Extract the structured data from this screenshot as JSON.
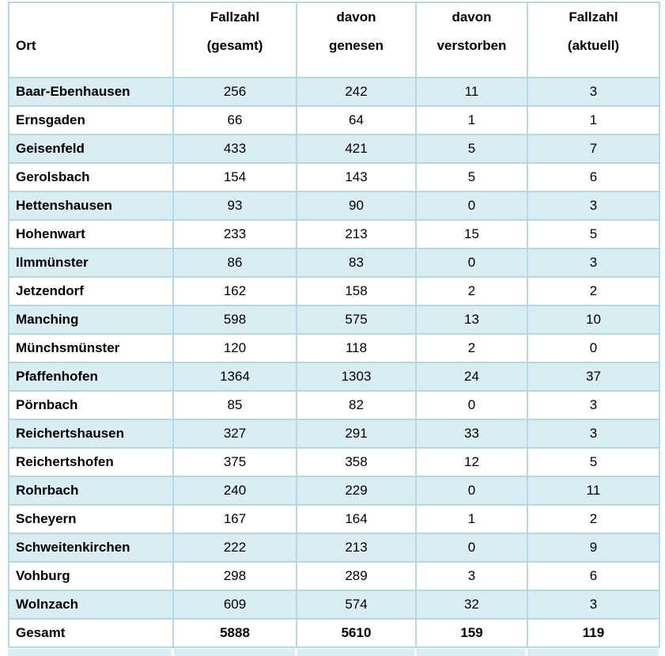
{
  "document": {
    "colors": {
      "row_shade": "#d9edf3",
      "border": "#b5d9e5",
      "header_separator": "#a0c8d7",
      "text": "#000000"
    },
    "table": {
      "header": {
        "ort": "Ort",
        "fallzahl_gesamt": {
          "line1": "Fallzahl",
          "line2": "(gesamt)"
        },
        "davon_genesen": {
          "line1": "davon",
          "line2": "genesen"
        },
        "davon_verstorben": {
          "line1": "davon",
          "line2": "verstorben"
        },
        "fallzahl_aktuell": {
          "line1": "Fallzahl",
          "line2": "(aktuell)"
        }
      },
      "rows": [
        {
          "ort": "Baar-Ebenhausen",
          "fallzahl_gesamt": "256",
          "davon_genesen": "242",
          "davon_verstorben": "11",
          "fallzahl_aktuell": "3"
        },
        {
          "ort": "Ernsgaden",
          "fallzahl_gesamt": "66",
          "davon_genesen": "64",
          "davon_verstorben": "1",
          "fallzahl_aktuell": "1"
        },
        {
          "ort": "Geisenfeld",
          "fallzahl_gesamt": "433",
          "davon_genesen": "421",
          "davon_verstorben": "5",
          "fallzahl_aktuell": "7"
        },
        {
          "ort": "Gerolsbach",
          "fallzahl_gesamt": "154",
          "davon_genesen": "143",
          "davon_verstorben": "5",
          "fallzahl_aktuell": "6"
        },
        {
          "ort": "Hettenshausen",
          "fallzahl_gesamt": "93",
          "davon_genesen": "90",
          "davon_verstorben": "0",
          "fallzahl_aktuell": "3"
        },
        {
          "ort": "Hohenwart",
          "fallzahl_gesamt": "233",
          "davon_genesen": "213",
          "davon_verstorben": "15",
          "fallzahl_aktuell": "5"
        },
        {
          "ort": "Ilmmünster",
          "fallzahl_gesamt": "86",
          "davon_genesen": "83",
          "davon_verstorben": "0",
          "fallzahl_aktuell": "3"
        },
        {
          "ort": "Jetzendorf",
          "fallzahl_gesamt": "162",
          "davon_genesen": "158",
          "davon_verstorben": "2",
          "fallzahl_aktuell": "2"
        },
        {
          "ort": "Manching",
          "fallzahl_gesamt": "598",
          "davon_genesen": "575",
          "davon_verstorben": "13",
          "fallzahl_aktuell": "10"
        },
        {
          "ort": "Münchsmünster",
          "fallzahl_gesamt": "120",
          "davon_genesen": "118",
          "davon_verstorben": "2",
          "fallzahl_aktuell": "0"
        },
        {
          "ort": "Pfaffenhofen",
          "fallzahl_gesamt": "1364",
          "davon_genesen": "1303",
          "davon_verstorben": "24",
          "fallzahl_aktuell": "37"
        },
        {
          "ort": "Pörnbach",
          "fallzahl_gesamt": "85",
          "davon_genesen": "82",
          "davon_verstorben": "0",
          "fallzahl_aktuell": "3"
        },
        {
          "ort": "Reichertshausen",
          "fallzahl_gesamt": "327",
          "davon_genesen": "291",
          "davon_verstorben": "33",
          "fallzahl_aktuell": "3"
        },
        {
          "ort": "Reichertshofen",
          "fallzahl_gesamt": "375",
          "davon_genesen": "358",
          "davon_verstorben": "12",
          "fallzahl_aktuell": "5"
        },
        {
          "ort": "Rohrbach",
          "fallzahl_gesamt": "240",
          "davon_genesen": "229",
          "davon_verstorben": "0",
          "fallzahl_aktuell": "11"
        },
        {
          "ort": "Scheyern",
          "fallzahl_gesamt": "167",
          "davon_genesen": "164",
          "davon_verstorben": "1",
          "fallzahl_aktuell": "2"
        },
        {
          "ort": "Schweitenkirchen",
          "fallzahl_gesamt": "222",
          "davon_genesen": "213",
          "davon_verstorben": "0",
          "fallzahl_aktuell": "9"
        },
        {
          "ort": "Vohburg",
          "fallzahl_gesamt": "298",
          "davon_genesen": "289",
          "davon_verstorben": "3",
          "fallzahl_aktuell": "6"
        },
        {
          "ort": "Wolnzach",
          "fallzahl_gesamt": "609",
          "davon_genesen": "574",
          "davon_verstorben": "32",
          "fallzahl_aktuell": "3"
        }
      ],
      "total": {
        "ort": "Gesamt",
        "fallzahl_gesamt": "5888",
        "davon_genesen": "5610",
        "davon_verstorben": "159",
        "fallzahl_aktuell": "119"
      }
    }
  }
}
